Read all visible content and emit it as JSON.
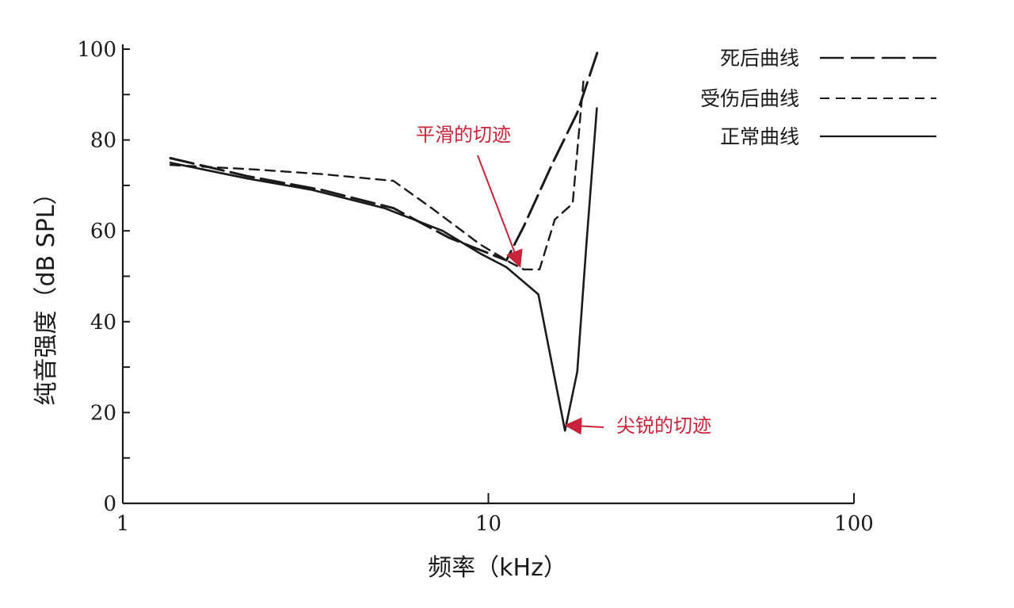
{
  "chart_data": {
    "type": "line",
    "xlabel": "频率（kHz）",
    "ylabel": "纯音强度（dB SPL）",
    "xscale": "log",
    "xlim": [
      1,
      100
    ],
    "ylim": [
      0,
      100
    ],
    "x_ticks": [
      1,
      10,
      100
    ],
    "x_tick_labels": [
      "1",
      "10",
      "100"
    ],
    "y_ticks": [
      0,
      20,
      40,
      60,
      80,
      100
    ],
    "y_tick_labels": [
      "0",
      "20",
      "40",
      "60",
      "80",
      "100"
    ],
    "grid": false,
    "legend_position": "top-right",
    "series": [
      {
        "name": "死后曲线",
        "style": "long-dash",
        "points": [
          [
            1.35,
            76
          ],
          [
            2.2,
            72
          ],
          [
            3.5,
            69
          ],
          [
            5.5,
            65
          ],
          [
            7.8,
            58.5
          ],
          [
            11.2,
            53.5
          ],
          [
            12.5,
            61
          ],
          [
            15,
            75
          ],
          [
            17.5,
            86
          ],
          [
            20,
            100
          ]
        ]
      },
      {
        "name": "受伤后曲线",
        "style": "dash",
        "points": [
          [
            1.35,
            74.5
          ],
          [
            2.3,
            73.5
          ],
          [
            3.5,
            72.5
          ],
          [
            5.5,
            71
          ],
          [
            7,
            65
          ],
          [
            9.5,
            57
          ],
          [
            11.5,
            53
          ],
          [
            12.5,
            51.5
          ],
          [
            13.8,
            51.5
          ],
          [
            15.2,
            62.5
          ],
          [
            17,
            66
          ],
          [
            18.2,
            93
          ]
        ]
      },
      {
        "name": "正常曲线",
        "style": "solid",
        "points": [
          [
            1.35,
            75
          ],
          [
            2.2,
            71.5
          ],
          [
            3.3,
            69
          ],
          [
            5.2,
            65
          ],
          [
            7.5,
            60
          ],
          [
            9.5,
            55
          ],
          [
            11.2,
            52
          ],
          [
            13.7,
            46
          ],
          [
            16.2,
            16
          ],
          [
            17.5,
            29
          ],
          [
            18.5,
            56
          ],
          [
            19.8,
            87
          ]
        ]
      }
    ],
    "annotations": [
      {
        "text": "平滑的切迹",
        "x": 12.2,
        "y": 51.5
      },
      {
        "text": "尖锐的切迹",
        "x": 16.3,
        "y": 16.5
      }
    ]
  }
}
